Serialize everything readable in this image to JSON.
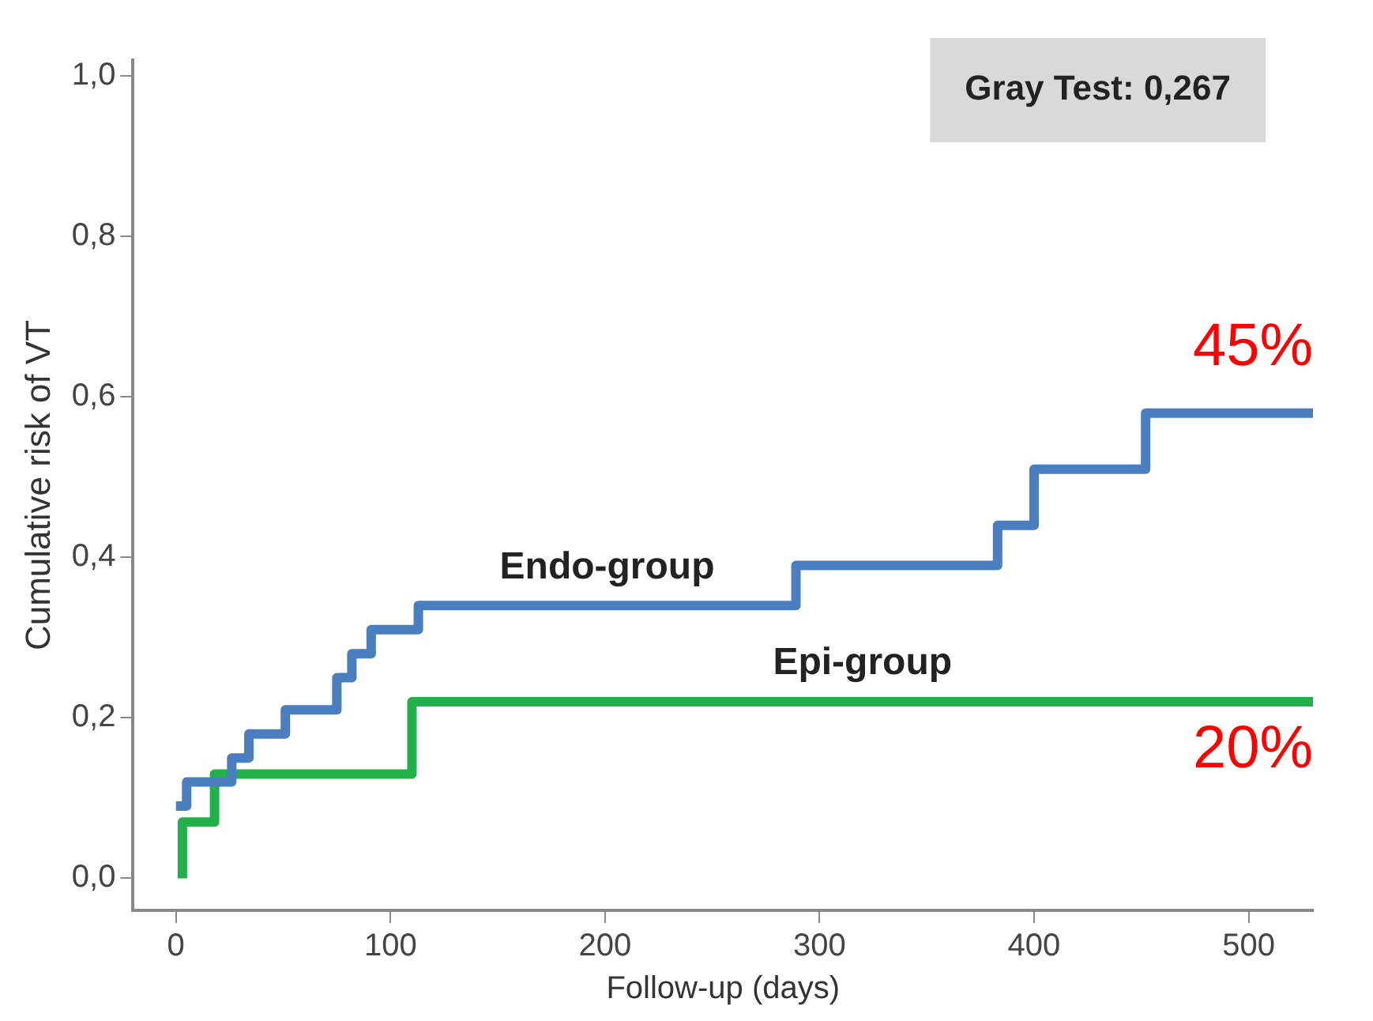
{
  "chart_data": {
    "type": "step",
    "xlabel": "Follow-up (days)",
    "ylabel": "Cumulative risk of VT",
    "series": [
      {
        "name": "Endo-group",
        "color": "#4a7ebf",
        "x": [
          0,
          5,
          26,
          34,
          51,
          75,
          82,
          91,
          113,
          289,
          383,
          400,
          452,
          530
        ],
        "values": [
          0.09,
          0.12,
          0.15,
          0.18,
          0.21,
          0.25,
          0.28,
          0.31,
          0.34,
          0.39,
          0.44,
          0.51,
          0.58,
          0.58
        ]
      },
      {
        "name": "Epi-group",
        "color": "#22b04b",
        "x": [
          3,
          3,
          18,
          110,
          530
        ],
        "values": [
          0.0,
          0.07,
          0.13,
          0.22,
          0.22
        ]
      }
    ],
    "xlim": [
      -20,
      530
    ],
    "xticks": [
      0,
      100,
      200,
      300,
      400,
      500
    ],
    "ylim": [
      -0.04,
      1.02
    ],
    "yticks": [
      {
        "value": 0,
        "label": "0,0"
      },
      {
        "value": 0.2,
        "label": "0,2"
      },
      {
        "value": 0.4,
        "label": "0,4"
      },
      {
        "value": 0.6,
        "label": "0,6"
      },
      {
        "value": 0.8,
        "label": "0,8"
      },
      {
        "value": 1.0,
        "label": "1,0"
      }
    ],
    "grid": false,
    "legend": false,
    "marker": "none",
    "line_style": "solid",
    "annotations": [
      "Gray Test: 0,267",
      "45%",
      "20%"
    ]
  }
}
